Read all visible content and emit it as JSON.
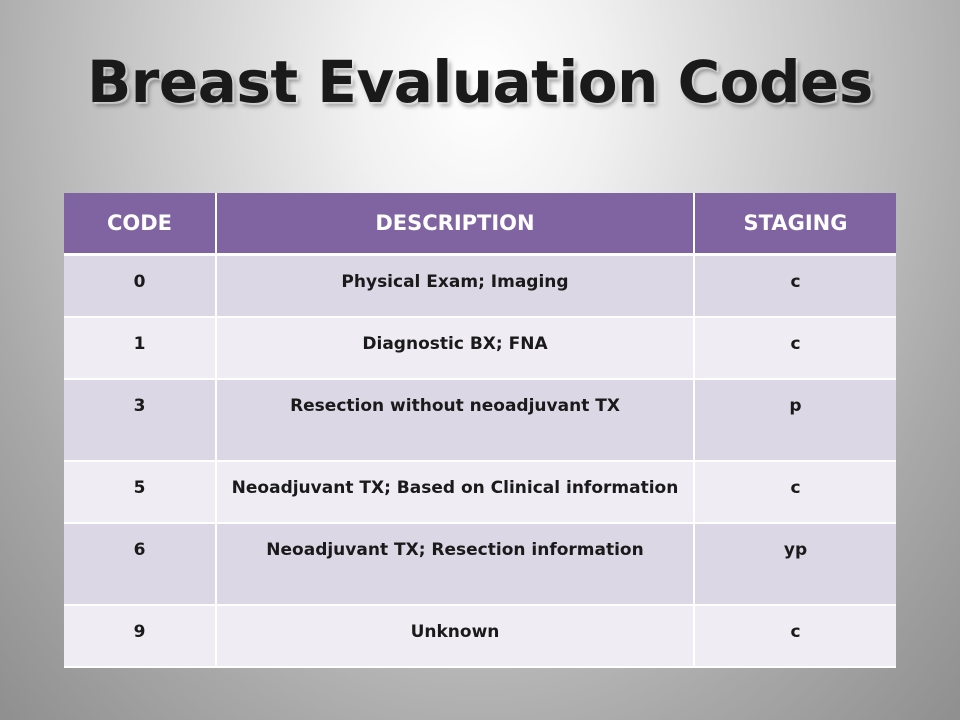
{
  "title": "Breast Evaluation Codes",
  "table": {
    "headers": [
      "CODE",
      "DESCRIPTION",
      "STAGING"
    ],
    "rows": [
      {
        "code": "0",
        "description": "Physical Exam; Imaging",
        "staging": "c"
      },
      {
        "code": "1",
        "description": "Diagnostic BX; FNA",
        "staging": "c"
      },
      {
        "code": "3",
        "description": "Resection without neoadjuvant TX",
        "staging": "p"
      },
      {
        "code": "5",
        "description": "Neoadjuvant TX; Based on Clinical information",
        "staging": "c"
      },
      {
        "code": "6",
        "description": "Neoadjuvant TX; Resection information",
        "staging": "yp"
      },
      {
        "code": "9",
        "description": "Unknown",
        "staging": "c"
      }
    ]
  },
  "colors": {
    "header_background": "#8064a2",
    "row_band_dark": "#dcd7e5",
    "row_band_light": "#efecf4"
  }
}
